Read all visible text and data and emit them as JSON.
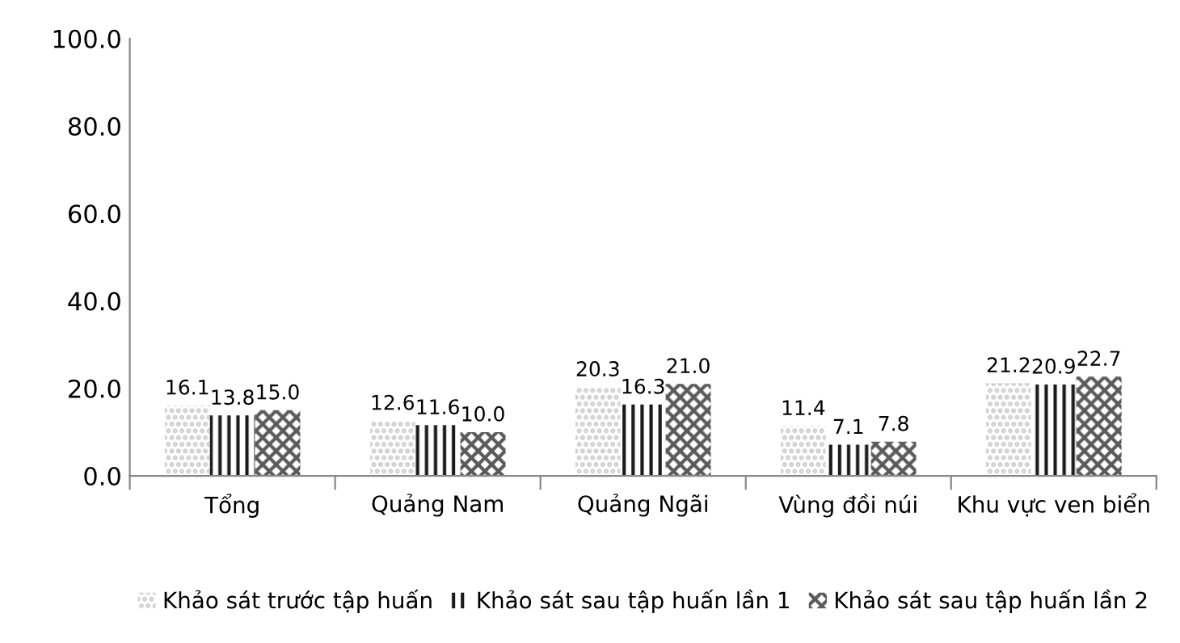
{
  "chart_data": {
    "type": "bar",
    "categories": [
      "Tổng",
      "Quảng Nam",
      "Quảng Ngãi",
      "Vùng đồi núi",
      "Khu vực ven biển"
    ],
    "series": [
      {
        "name": "Khảo sát trước tập huấn",
        "color": "#c8c8c8",
        "values": [
          16.1,
          12.6,
          20.3,
          11.4,
          21.2
        ],
        "value_labels": [
          "16.1",
          "12.6",
          "20.3",
          "11.4",
          "21.2"
        ]
      },
      {
        "name": "Khảo sát sau tập huấn lần 1",
        "color": "#1a1a1a",
        "values": [
          13.8,
          11.6,
          16.3,
          7.1,
          20.9
        ],
        "value_labels": [
          "13.8",
          "11.6",
          "16.3",
          "7.1",
          "20.9"
        ]
      },
      {
        "name": "Khảo sát sau tập huấn lần 2",
        "color": "#5a5a5a",
        "values": [
          15.0,
          10.0,
          21.0,
          7.8,
          22.7
        ],
        "value_labels": [
          "15.0",
          "10.0",
          "21.0",
          "7.8",
          "22.7"
        ]
      }
    ],
    "ylim": [
      0,
      100
    ],
    "yticks": [
      {
        "value": 0,
        "label": "0.0"
      },
      {
        "value": 20,
        "label": "20.0"
      },
      {
        "value": 40,
        "label": "40.0"
      },
      {
        "value": 60,
        "label": "60.0"
      },
      {
        "value": 80,
        "label": "80.0"
      },
      {
        "value": 100,
        "label": "100.0"
      }
    ],
    "grid": false,
    "legend": "bottom"
  }
}
